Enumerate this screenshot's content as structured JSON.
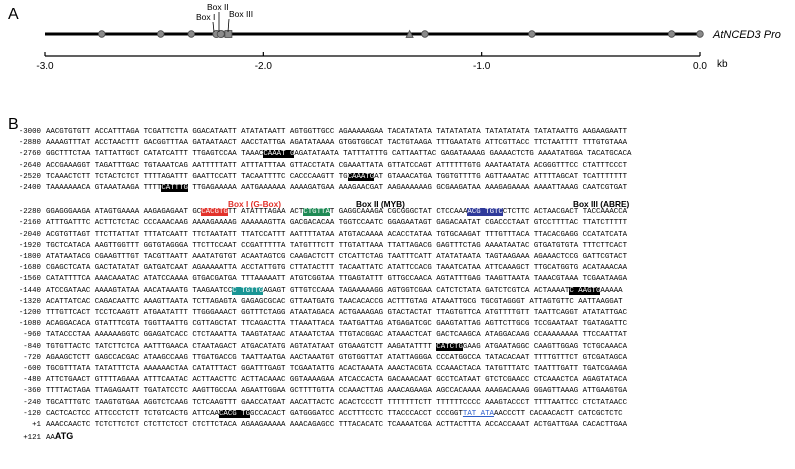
{
  "panel_a": {
    "label": "A",
    "gene_label": "AtNCED3 Pro",
    "axis_unit": "kb",
    "ticks": [
      {
        "kb": -3.0,
        "label": "-3.0"
      },
      {
        "kb": -2.0,
        "label": "-2.0"
      },
      {
        "kb": -1.0,
        "label": "-1.0"
      },
      {
        "kb": 0.0,
        "label": "0.0"
      }
    ],
    "box_labels": [
      "Box I",
      "Box II",
      "Box III"
    ],
    "circle_marks_kb": [
      -2.74,
      -2.47,
      -2.33,
      -2.19,
      -1.26,
      -0.77,
      -0.13,
      0.0
    ],
    "triangle_marks_kb": [
      -1.33
    ],
    "box_marks_kb": [
      -2.16
    ],
    "colors": {
      "line": "#000000",
      "marker_fill": "#8a8a8a",
      "marker_stroke": "#4a4a4a"
    }
  },
  "panel_b": {
    "label": "B",
    "box_labels": [
      {
        "text": "Box I (G-Box)",
        "color": "#e2322b"
      },
      {
        "text": "Box II (MYB)",
        "color": "#000000"
      },
      {
        "text": "Box III (ABRE)",
        "color": "#000000"
      }
    ],
    "lines": [
      {
        "pos": "-3000",
        "frags": [
          {
            "t": "AACGTGTGTT ACCATTTAGA TCGATTCTTA GGACATAATT ATATATAATT AGTGGTTGCC AGAAAAAGAA TACATATATA TATATATATA TATATATATA TATATAATTG AAGAAGAATT"
          }
        ]
      },
      {
        "pos": "-2880",
        "frags": [
          {
            "t": "AAAAGTTTAT ACCTAACTTT GACGGTTTAA GATAATAACT AACCTATTGA AGATATAAAA GTGGTGGCAT TACTGTAAGA TTTGAATATG ATTCGTTACC TTCTAATTTT TTTGTGTAAA"
          }
        ]
      },
      {
        "pos": "-2760",
        "frags": [
          {
            "t": "GGCTTTCTAA TATTATTGCT CATATCATTT TTGAGTCCAA TAAAC"
          },
          {
            "t": "CAAAT G",
            "c": "hl-black"
          },
          {
            "t": "AGATATAATA TATTTATTTG CATTAATTAC GAGATAAAAG GAAAACTCTG AAAATATGGA TACATGCACA"
          }
        ]
      },
      {
        "pos": "-2640",
        "frags": [
          {
            "t": "ACCGAAAGGT TAGATTTGAC TGTAAATCAG AATTTTTATT ATTTATTTAA GTTACCTATA CGAAATTATA GTTATCCAGT ATTTTTTGTG AAATAATATA ACGGGTTTCC CTATTTCCCT"
          }
        ]
      },
      {
        "pos": "-2520",
        "frags": [
          {
            "t": "TCAAACTCTT TCTACTCTCT TTTTAGATTT GAATTCCATT TACAATTTTC CACCCAAGTT TG"
          },
          {
            "t": "CAAATG",
            "c": "hl-black"
          },
          {
            "t": "AT GTAAACATGA TGGTGTTTTG AGTTAAATAC ATTTTAGCAT TCATTTTTTT"
          }
        ]
      },
      {
        "pos": "-2400",
        "frags": [
          {
            "t": "TAAAAAAACA GTAAATAAGA TTTT"
          },
          {
            "t": "CATTTG",
            "c": "hl-black"
          },
          {
            "t": " TTGAGAAAAA AATGAAAAAA AAAAGATGAA AAAGAACGAT AAGAAAAAAG GCGAAGATAA AAAGAGAAAA AAAATTAAAG CAATCGTGAT"
          }
        ]
      },
      {
        "pos": "-2280",
        "frags": [
          {
            "t": "GGAGGGAAGA ATAGTGAAAA AAGAGAGAAT GC"
          },
          {
            "t": "CACGTG",
            "c": "hl-red"
          },
          {
            "t": "TT ATATTTAGAA ACT"
          },
          {
            "t": "CTGTTA",
            "c": "hl-green"
          },
          {
            "t": "T GAGGCAAAGA CGCGGGCTAT CTCCAAA"
          },
          {
            "t": "ACG TGTC",
            "c": "hl-blue"
          },
          {
            "t": "CTCTTC ACTAACGACT TACCAAACCA"
          }
        ]
      },
      {
        "pos": "-2160",
        "frags": [
          {
            "t": "ATTTGATTTC ACTTCTCTAC CCCAAACAAG AAAAGAAAAG AAAAAAGTTA GACGACACAA TGGTCCAATC GGAGAATAGT GAGACAATAT CGACCCTAAT GTCCTTTTAC TTATCTTTTT"
          }
        ]
      },
      {
        "pos": "-2040",
        "frags": [
          {
            "t": "ACGTGTTAGT TTCTTATTAT TTTATCAATT TTCTAATATT TTATCCATTT AATTTTATAA ATGTACAAAA ACACCTATAA TGTGCAAGAT TTTGTTTACA TTACACGAGG CCATATCATA"
          }
        ]
      },
      {
        "pos": "-1920",
        "frags": [
          {
            "t": "TGCTCATACA AAGTTGGTTT GGTGTAGGGA TTCTTCCAAT CCGATTTTTA TATGTTTCTT TTGTATTAAA TTATTAGACG GAGTTTCTAG AAAATAATAC GTGATGTGTA TTTCTTCACT"
          }
        ]
      },
      {
        "pos": "-1800",
        "frags": [
          {
            "t": "ATATAATACG CGAAGTTTGT TACGTTAATT AAATATGTGT ACAATAGTCG CAAGACTCTT CTCATTCTAG TAATTTCATT ATATATAATA TAGTAAGAAA AGAAACTCCG GATTCGTACT"
          }
        ]
      },
      {
        "pos": "-1680",
        "frags": [
          {
            "t": "CGAGCTCATA GACTATATAT GATGATCAAT AGAAAAATTA ACCTATTGTG CTTATACTTT TACAATTATC ATATTCCACG TAAATCATAA ATTCAAAGCT TTGCATGGTG ACATAAACAA"
          }
        ]
      },
      {
        "pos": "-1560",
        "frags": [
          {
            "t": "CATATTTTCA AAACAAATAC ATATCCAAAA GTGACGATGA TTTAAAAATT ATGTCGGTAA TTGAGTATTT GTTGCCAACA AGTATTTGAG TAAGTTAATA TAAACGTAAA TCGAATAAGA"
          }
        ]
      },
      {
        "pos": "-1440",
        "frags": [
          {
            "t": "ATCCGATAAC AAAAGTATAA AACATAAATG TAAGAATCC"
          },
          {
            "t": "C TGTTG",
            "c": "hl-teal"
          },
          {
            "t": "AGAGT GTTGTCCAAA TAGAAAAAGG AGTGGTCGAA CATCTCTATA GATCTCGTCA ACTAAAAT"
          },
          {
            "t": "C AAGTG",
            "c": "hl-black"
          },
          {
            "t": "AAAAA"
          }
        ]
      },
      {
        "pos": "-1320",
        "frags": [
          {
            "t": "ACATTATCAC CAGACAATTC AAAGTTAATA TCTTAGAGTA GAGAGCGCAC GTTAATGATG TAACACACCG ACTTTGTAG ATAAATTGCG TGCGTAGGGT ATTAGTGTTC AATTAAGGAT"
          }
        ]
      },
      {
        "pos": "-1200",
        "frags": [
          {
            "t": "TTTGTTCACT TCCTCAAGTT ATGAATATTT TTGGGAAACT GGTTTCTAGG ATAATAGACA ACTGAAAGAG GTACTACTAT TTAGTGTTCA ATGTTTTGTT TAATTCAGGT ATATATTGAC"
          }
        ]
      },
      {
        "pos": "-1080",
        "frags": [
          {
            "t": "ACAGGACACA GTATTTCGTA TGGTTAATTG CGTTAGCTAT TTCAGACTTA TTAAATTACA TAATGATTAG ATGAGATCGC GAAGTATTAG AGTTCTTGCG TCCGAATAAT TGATAGATTC"
          }
        ]
      },
      {
        "pos": "-960",
        "frags": [
          {
            "t": "TATACCCTAA AAAAAAGGTC GGAGATCACC CTCTAAATTA TAAGTATAAC ATAAATCTAA TTGTACGGAC ATAAACTCAT GACTCAAGCA ATAGGACAAG CCAAAAAAAA TTCCAATTAT"
          }
        ]
      },
      {
        "pos": "-840",
        "frags": [
          {
            "t": "TGTGTTACTC TATCTTCTCA AATTTGAACA CTAATAGACT ATGACATATG AGTATATAAT GTGAAGTCTT AAGATATTTT "
          },
          {
            "t": "CATCTG",
            "c": "hl-black"
          },
          {
            "t": "GAAG ATGAATAGGC CAAGTTGGAG TCTGCAAACA"
          }
        ]
      },
      {
        "pos": "-720",
        "frags": [
          {
            "t": "AGAAGCTCTT GAGCCACGAC ATAAGCCAAG TTGATGACCG TAATTAATGA AACTAAATGT GTGTGGTTAT ATATTAGGGA CCCATGGCCA TATACACAAT TTTTGTTTCT GTCGATAGCA"
          }
        ]
      },
      {
        "pos": "-600",
        "frags": [
          {
            "t": "TGCGTTTATA TATATTTCTA AAAAAACTAA CATATTTACT GGATTTGAGT TCGAATATTG ACACTAAATA AAACTACGTA CCAAACTACA TATGTTTATC TAATTTGATT TGATCGAAGA"
          }
        ]
      },
      {
        "pos": "-480",
        "frags": [
          {
            "t": "ATTCTGAACT GTTTTAGAAA ATTTCAATAC ACTTAACTTC ACTTACAAAC GGTAAAAGAA ATCACCACTA GACAAACAAT GCCTCATAAT GTCTCGAACC CTCAAACTCA AGAGTATACA"
          }
        ]
      },
      {
        "pos": "-360",
        "frags": [
          {
            "t": "TTTTACTAGA TTAGAGAATT TGATATCCTC AAGTTGCCAA AGAATTGGAA GCTTTTGTTA CCAAACTTAG AAACAGAAGA AGCCACAAAA AAAGACAAAG GGAGTTAAAG ATTGAAGTGA"
          }
        ]
      },
      {
        "pos": "-240",
        "frags": [
          {
            "t": "TGCATTTGTC TAAGTGTGAA AGGTCTCAAG TCTCAAGTTT GAACCATAAT AACATTACTC ACACTCCCTT TTTTTTTCTT TTTTTTCCCC AAAGTACCCT TTTTAATTCC CTCTATAACC"
          }
        ]
      },
      {
        "pos": "-120",
        "frags": [
          {
            "t": "CACTCACTCC ATTCCCTCTT TCTGTCACTG ATTCAA"
          },
          {
            "t": "CACG TG",
            "c": "hl-black"
          },
          {
            "t": "GCCACACT GATGGGATCC ACCTTTCCTC TTACCCACCT CCCGGT"
          },
          {
            "t": "TAT ATA",
            "c": "ul-blue"
          },
          {
            "t": "AACCCTT CACAACACTT CATCGCTCTC"
          }
        ]
      },
      {
        "pos": "+1",
        "frags": [
          {
            "t": "AAACCAACTC TCTCTTCTCT CTCTTCTCCT CTCTTCTACA AGAAGAAAAA AAACAGAGCC TTTACACATC TCAAAATCGA ACTTACTTTA ACCACCAAAT ACTGATTGAA CACACTTGAA"
          }
        ]
      },
      {
        "pos": "+121",
        "frags": [
          {
            "t": "AA"
          },
          {
            "t": "ATG",
            "c": "atg"
          }
        ]
      }
    ]
  }
}
